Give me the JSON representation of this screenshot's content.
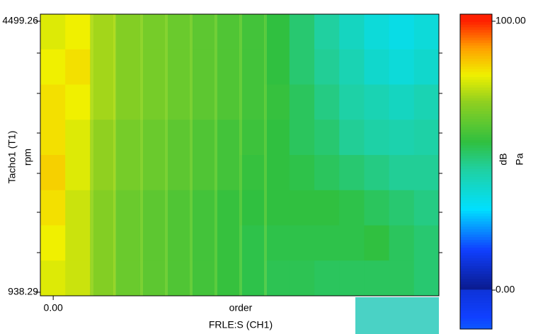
{
  "chart_data": {
    "type": "heatmap",
    "ylabel": "Tacho1 (T1)",
    "yunit": "rpm",
    "xlabel": "order",
    "xtitle": "FRLE:S (CH1)",
    "ylim": [
      938.29,
      4499.26
    ],
    "yticks": [
      {
        "value": 938.29,
        "label": "938.29"
      },
      {
        "value": 4499.26,
        "label": "4499.26"
      }
    ],
    "xlim": [
      -0.5,
      15
    ],
    "xticks": [
      {
        "value": 0,
        "label": "0.00"
      }
    ],
    "z": [
      [
        78,
        80,
        72,
        68,
        66,
        64,
        62,
        60,
        58,
        55,
        50,
        45,
        40,
        36,
        34,
        36
      ],
      [
        80,
        82,
        72,
        68,
        66,
        64,
        62,
        60,
        58,
        55,
        50,
        46,
        42,
        38,
        36,
        38
      ],
      [
        82,
        80,
        72,
        68,
        66,
        64,
        62,
        60,
        58,
        56,
        52,
        48,
        44,
        42,
        40,
        42
      ],
      [
        82,
        78,
        70,
        66,
        64,
        62,
        60,
        58,
        57,
        55,
        52,
        50,
        46,
        44,
        43,
        44
      ],
      [
        84,
        78,
        70,
        66,
        64,
        62,
        60,
        58,
        56,
        55,
        54,
        52,
        50,
        48,
        46,
        46
      ],
      [
        82,
        76,
        68,
        64,
        62,
        60,
        58,
        56,
        55,
        55,
        55,
        55,
        54,
        52,
        50,
        48
      ],
      [
        80,
        76,
        68,
        64,
        62,
        60,
        58,
        56,
        54,
        54,
        54,
        54,
        54,
        55,
        52,
        50
      ],
      [
        78,
        76,
        68,
        64,
        62,
        60,
        58,
        56,
        54,
        53,
        53,
        52,
        52,
        52,
        52,
        50
      ]
    ],
    "colorscale": [
      [
        0,
        "#0a1a8c"
      ],
      [
        15,
        "#1040ff"
      ],
      [
        30,
        "#00e0ff"
      ],
      [
        45,
        "#20d0a0"
      ],
      [
        55,
        "#30c040"
      ],
      [
        70,
        "#90d020"
      ],
      [
        80,
        "#f0f000"
      ],
      [
        90,
        "#ffa000"
      ],
      [
        100,
        "#ff2000"
      ]
    ],
    "zlim": [
      0,
      100
    ],
    "zticks": [
      {
        "value": 0,
        "label": "0.00"
      },
      {
        "value": 100,
        "label": "100.00"
      }
    ],
    "zlabel": "dB",
    "zunit": "Pa"
  }
}
